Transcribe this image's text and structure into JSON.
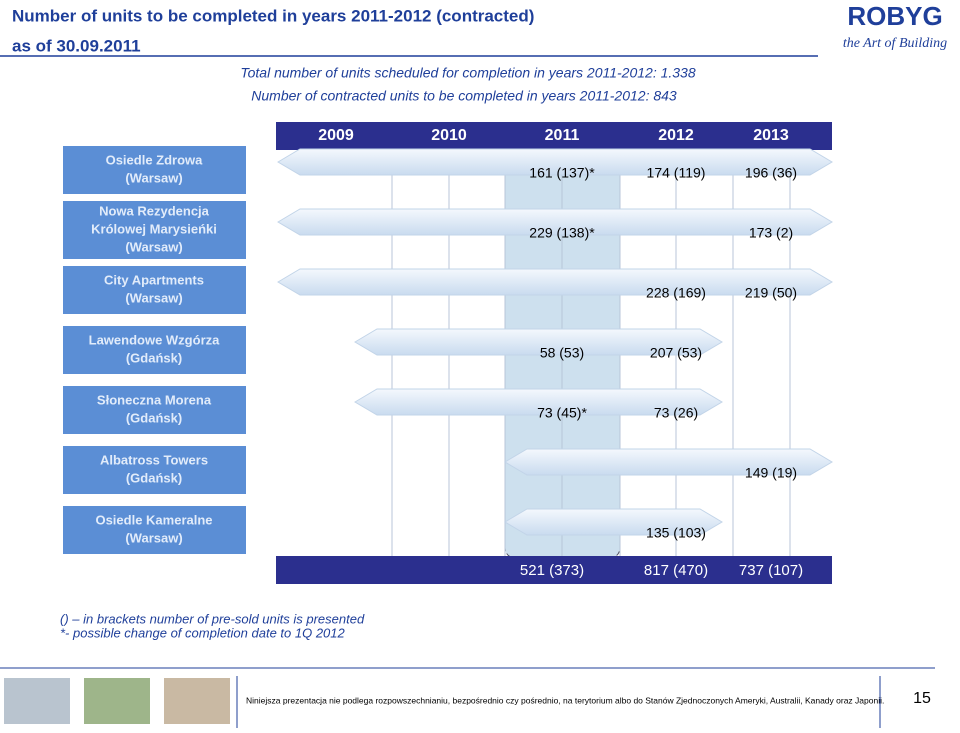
{
  "header": {
    "title": [
      "Number of units to be completed in years 2011-2012 (contracted)",
      "as of 30.09.2011"
    ],
    "logo": [
      "ROBYG",
      "the Art of Building"
    ]
  },
  "summary": [
    "Total number of units scheduled for completion in years 2011-2012: 1.338",
    "Number of contracted units to be completed in years 2011-2012: 843"
  ],
  "table": {
    "years": [
      "2009",
      "2010",
      "2011",
      "2012",
      "2013"
    ],
    "rows": [
      {
        "label": [
          "Osiedle Zdrowa",
          "(Warsaw)"
        ],
        "cells": [
          null,
          null,
          "161 (137)*",
          "174 (119)",
          "196 (36)"
        ]
      },
      {
        "label": [
          "Nowa Rezydencja",
          "Królowej Marysieńki",
          "(Warsaw)"
        ],
        "cells": [
          null,
          null,
          "229 (138)*",
          null,
          "173 (2)"
        ]
      },
      {
        "label": [
          "City Apartments",
          "(Warsaw)"
        ],
        "cells": [
          null,
          null,
          null,
          "228 (169)",
          "219 (50)"
        ]
      },
      {
        "label": [
          "Lawendowe Wzgórza",
          "(Gdańsk)"
        ],
        "cells": [
          null,
          null,
          "58 (53)",
          "207 (53)",
          null
        ]
      },
      {
        "label": [
          "Słoneczna Morena",
          "(Gdańsk)"
        ],
        "cells": [
          null,
          null,
          "73 (45)*",
          "73 (26)",
          null
        ]
      },
      {
        "label": [
          "Albatross Towers",
          "(Gdańsk)"
        ],
        "cells": [
          null,
          null,
          null,
          null,
          "149 (19)"
        ]
      },
      {
        "label": [
          "Osiedle Kameralne",
          "(Warsaw)"
        ],
        "cells": [
          null,
          null,
          null,
          "135 (103)",
          null
        ]
      }
    ],
    "totals": [
      null,
      null,
      "521 (373)",
      "817 (470)",
      "737 (107)"
    ]
  },
  "notes": [
    "() – in brackets number of pre-sold units is presented",
    "*- possible change of completion date to 1Q 2012"
  ],
  "footer": {
    "text": "Niniejsza prezentacja nie podlega rozpowszechnianiu, bezpośrednio czy pośrednio, na terytorium albo do Stanów Zjednoczonych Ameryki, Australii, Kanady oraz Japonii.",
    "page": "15"
  }
}
